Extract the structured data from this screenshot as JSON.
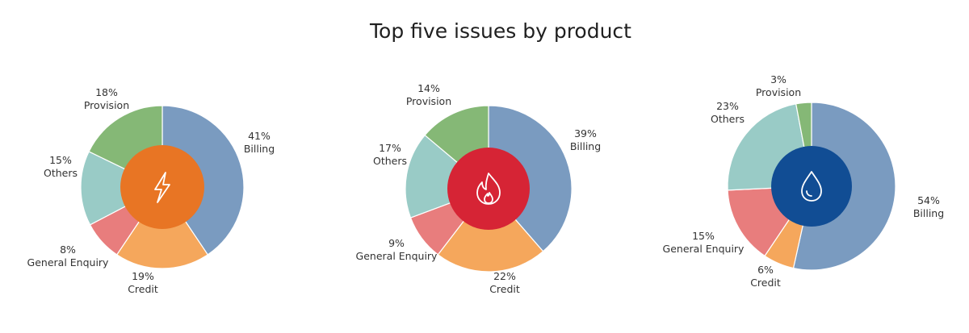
{
  "title": "Top five issues by product",
  "colors": {
    "Billing": "#7a9bc0",
    "Credit": "#f5a75c",
    "General Enquiry": "#e87d7d",
    "Others": "#99cbc6",
    "Provision": "#85b876"
  },
  "chart_data": [
    {
      "type": "pie",
      "variant": "donut",
      "icon": "lightning-bolt-icon",
      "center_color": "#e87524",
      "categories": [
        "Billing",
        "Credit",
        "General Enquiry",
        "Others",
        "Provision"
      ],
      "values": [
        41,
        19,
        8,
        15,
        18
      ],
      "labels": [
        "41%",
        "19%",
        "8%",
        "15%",
        "18%"
      ]
    },
    {
      "type": "pie",
      "variant": "donut",
      "icon": "flame-icon",
      "center_color": "#d62435",
      "categories": [
        "Billing",
        "Credit",
        "General Enquiry",
        "Others",
        "Provision"
      ],
      "values": [
        39,
        22,
        9,
        17,
        14
      ],
      "labels": [
        "39%",
        "22%",
        "9%",
        "17%",
        "14%"
      ]
    },
    {
      "type": "pie",
      "variant": "donut",
      "icon": "water-drop-icon",
      "center_color": "#114d94",
      "categories": [
        "Billing",
        "Credit",
        "General Enquiry",
        "Others",
        "Provision"
      ],
      "values": [
        54,
        6,
        15,
        23,
        3
      ],
      "labels": [
        "54%",
        "6%",
        "15%",
        "23%",
        "3%"
      ]
    }
  ]
}
